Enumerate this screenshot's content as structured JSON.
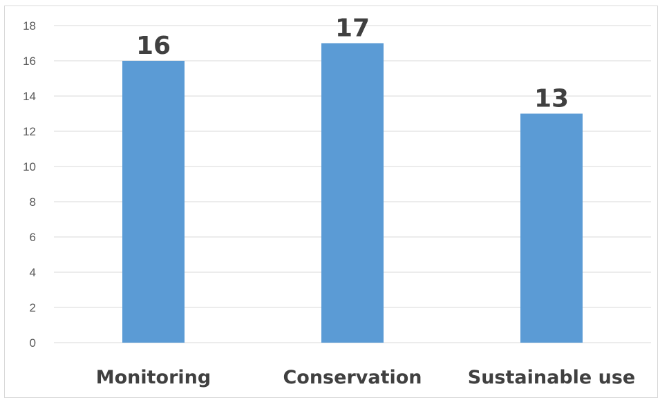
{
  "chart_data": {
    "type": "bar",
    "categories": [
      "Monitoring",
      "Conservation",
      "Sustainable use"
    ],
    "values": [
      16,
      17,
      13
    ],
    "data_labels": [
      "16",
      "17",
      "13"
    ],
    "ylim": [
      0,
      18
    ],
    "yticks": [
      "0",
      "2",
      "4",
      "6",
      "8",
      "10",
      "12",
      "14",
      "16",
      "18"
    ],
    "grid": true,
    "legend": "none",
    "bar_color": "#5b9bd5",
    "grid_color": "#d9d9d9"
  }
}
